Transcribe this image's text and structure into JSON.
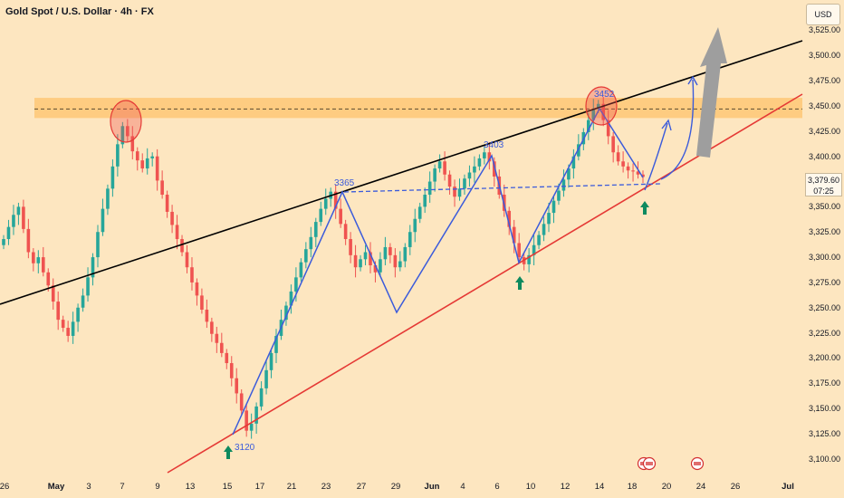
{
  "header": {
    "title": "Gold Spot / U.S. Dollar · 4h · FX"
  },
  "price_axis": {
    "currency": "USD",
    "last_price": "3,379.60",
    "countdown": "07:25",
    "ticks": [
      "3,525.00",
      "3,500.00",
      "3,475.00",
      "3,450.00",
      "3,425.00",
      "3,400.00",
      "3,350.00",
      "3,325.00",
      "3,300.00",
      "3,275.00",
      "3,250.00",
      "3,225.00",
      "3,200.00",
      "3,175.00",
      "3,150.00",
      "3,125.00",
      "3,100.00"
    ]
  },
  "time_axis": {
    "ticks": [
      {
        "label": "26",
        "bold": false
      },
      {
        "label": "May",
        "bold": true
      },
      {
        "label": "3",
        "bold": false
      },
      {
        "label": "7",
        "bold": false
      },
      {
        "label": "9",
        "bold": false
      },
      {
        "label": "13",
        "bold": false
      },
      {
        "label": "15",
        "bold": false
      },
      {
        "label": "17",
        "bold": false
      },
      {
        "label": "21",
        "bold": false
      },
      {
        "label": "23",
        "bold": false
      },
      {
        "label": "27",
        "bold": false
      },
      {
        "label": "29",
        "bold": false
      },
      {
        "label": "Jun",
        "bold": true
      },
      {
        "label": "4",
        "bold": false
      },
      {
        "label": "6",
        "bold": false
      },
      {
        "label": "10",
        "bold": false
      },
      {
        "label": "12",
        "bold": false
      },
      {
        "label": "14",
        "bold": false
      },
      {
        "label": "18",
        "bold": false
      },
      {
        "label": "20",
        "bold": false
      },
      {
        "label": "24",
        "bold": false
      },
      {
        "label": "26",
        "bold": false
      },
      {
        "label": "Jul",
        "bold": true
      }
    ]
  },
  "annotations": {
    "low_label": "3120",
    "pivot_label": "3365",
    "swing_high_label": "3403",
    "top_label": "3452"
  },
  "colors": {
    "background": "#fde6c0",
    "bull_candle": "#26a69a",
    "bear_candle": "#ef5350",
    "resistance_zone": "#ffb74d",
    "pattern_line": "#3b5bdb",
    "support_line": "#e53935",
    "upper_trendline": "#000000",
    "signal_arrow": "#0d8a5f",
    "projection_arrow": "#9e9e9e"
  },
  "chart_data": {
    "type": "candlestick",
    "symbol": "Gold Spot / U.S. Dollar",
    "timeframe": "4h",
    "ylim": [
      3090,
      3540
    ],
    "resistance_zone": [
      3438,
      3458
    ],
    "resistance_level": 3447,
    "key_prices": {
      "low": 3120,
      "pivot": 3365,
      "swing_high": 3403,
      "top": 3452,
      "last": 3379.6
    },
    "closes": [
      3318,
      3330,
      3342,
      3350,
      3328,
      3305,
      3294,
      3300,
      3285,
      3272,
      3256,
      3238,
      3230,
      3222,
      3236,
      3250,
      3262,
      3280,
      3300,
      3325,
      3348,
      3368,
      3390,
      3412,
      3430,
      3420,
      3405,
      3396,
      3388,
      3398,
      3400,
      3376,
      3362,
      3345,
      3332,
      3318,
      3305,
      3290,
      3275,
      3262,
      3248,
      3236,
      3224,
      3215,
      3205,
      3195,
      3180,
      3165,
      3148,
      3128,
      3135,
      3152,
      3170,
      3188,
      3205,
      3222,
      3238,
      3252,
      3266,
      3280,
      3295,
      3308,
      3320,
      3335,
      3348,
      3358,
      3365,
      3348,
      3333,
      3318,
      3302,
      3290,
      3298,
      3305,
      3292,
      3285,
      3298,
      3310,
      3302,
      3290,
      3296,
      3310,
      3325,
      3338,
      3350,
      3362,
      3375,
      3388,
      3395,
      3382,
      3370,
      3360,
      3368,
      3378,
      3384,
      3390,
      3398,
      3404,
      3395,
      3380,
      3362,
      3346,
      3330,
      3314,
      3300,
      3293,
      3302,
      3312,
      3322,
      3333,
      3344,
      3356,
      3366,
      3377,
      3388,
      3400,
      3412,
      3424,
      3436,
      3447,
      3452,
      3436,
      3420,
      3404,
      3395,
      3390,
      3386,
      3385,
      3382,
      3379.6
    ]
  }
}
